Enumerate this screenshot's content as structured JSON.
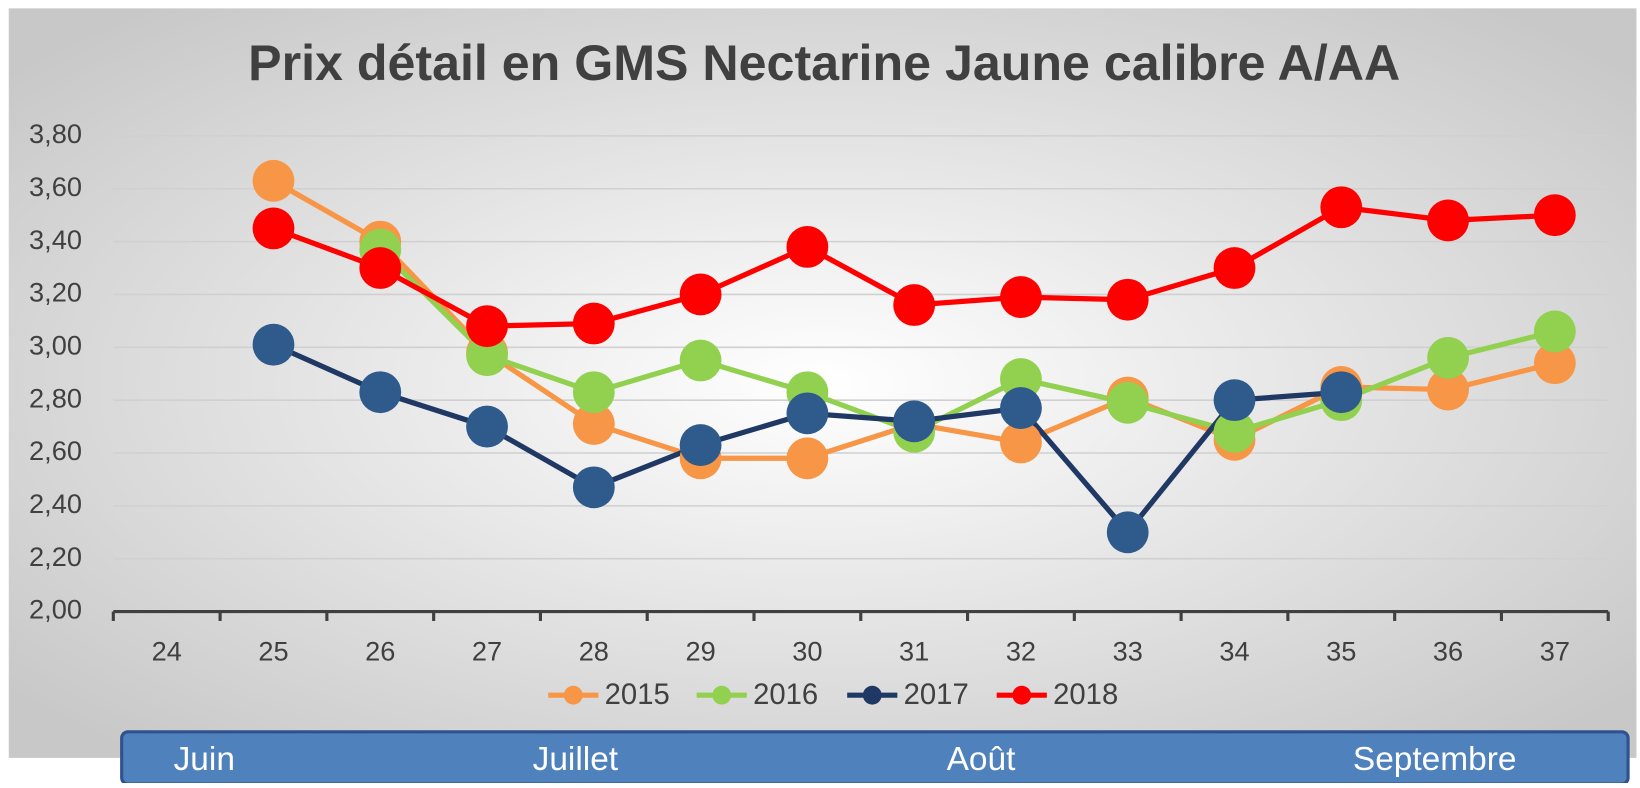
{
  "chart_data": {
    "type": "line",
    "title": "Prix détail en GMS Nectarine Jaune calibre A/AA",
    "categories": [
      "24",
      "25",
      "26",
      "27",
      "28",
      "29",
      "30",
      "31",
      "32",
      "33",
      "34",
      "35",
      "36",
      "37"
    ],
    "series": [
      {
        "name": "2015",
        "color": "#f79646",
        "values": [
          null,
          3.63,
          3.4,
          2.98,
          2.71,
          2.58,
          2.58,
          2.71,
          2.64,
          2.81,
          2.65,
          2.85,
          2.84,
          2.94
        ]
      },
      {
        "name": "2016",
        "color": "#92d050",
        "values": [
          null,
          null,
          3.37,
          2.97,
          2.83,
          2.95,
          2.83,
          2.68,
          2.88,
          2.79,
          2.68,
          2.8,
          2.96,
          3.06
        ]
      },
      {
        "name": "2017",
        "color": "#1f3864",
        "values": [
          null,
          3.01,
          2.83,
          2.7,
          2.47,
          2.63,
          2.75,
          2.72,
          2.77,
          2.3,
          2.8,
          2.83,
          null,
          null
        ]
      },
      {
        "name": "2018",
        "color": "#ff0000",
        "values": [
          null,
          3.45,
          3.3,
          3.08,
          3.09,
          3.2,
          3.38,
          3.16,
          3.19,
          3.18,
          3.3,
          3.53,
          3.48,
          3.5
        ]
      }
    ],
    "ylim": [
      2.0,
      3.8
    ],
    "yticks": [
      {
        "value": 2.0,
        "label": "2,00"
      },
      {
        "value": 2.2,
        "label": "2,20"
      },
      {
        "value": 2.4,
        "label": "2,40"
      },
      {
        "value": 2.6,
        "label": "2,60"
      },
      {
        "value": 2.8,
        "label": "2,80"
      },
      {
        "value": 3.0,
        "label": "3,00"
      },
      {
        "value": 3.2,
        "label": "3,20"
      },
      {
        "value": 3.4,
        "label": "3,40"
      },
      {
        "value": 3.6,
        "label": "3,60"
      },
      {
        "value": 3.8,
        "label": "3,80"
      }
    ],
    "grid": true,
    "legend": "bottom",
    "month_labels": [
      "Juin",
      "Juillet",
      "Août",
      "Septembre"
    ]
  }
}
